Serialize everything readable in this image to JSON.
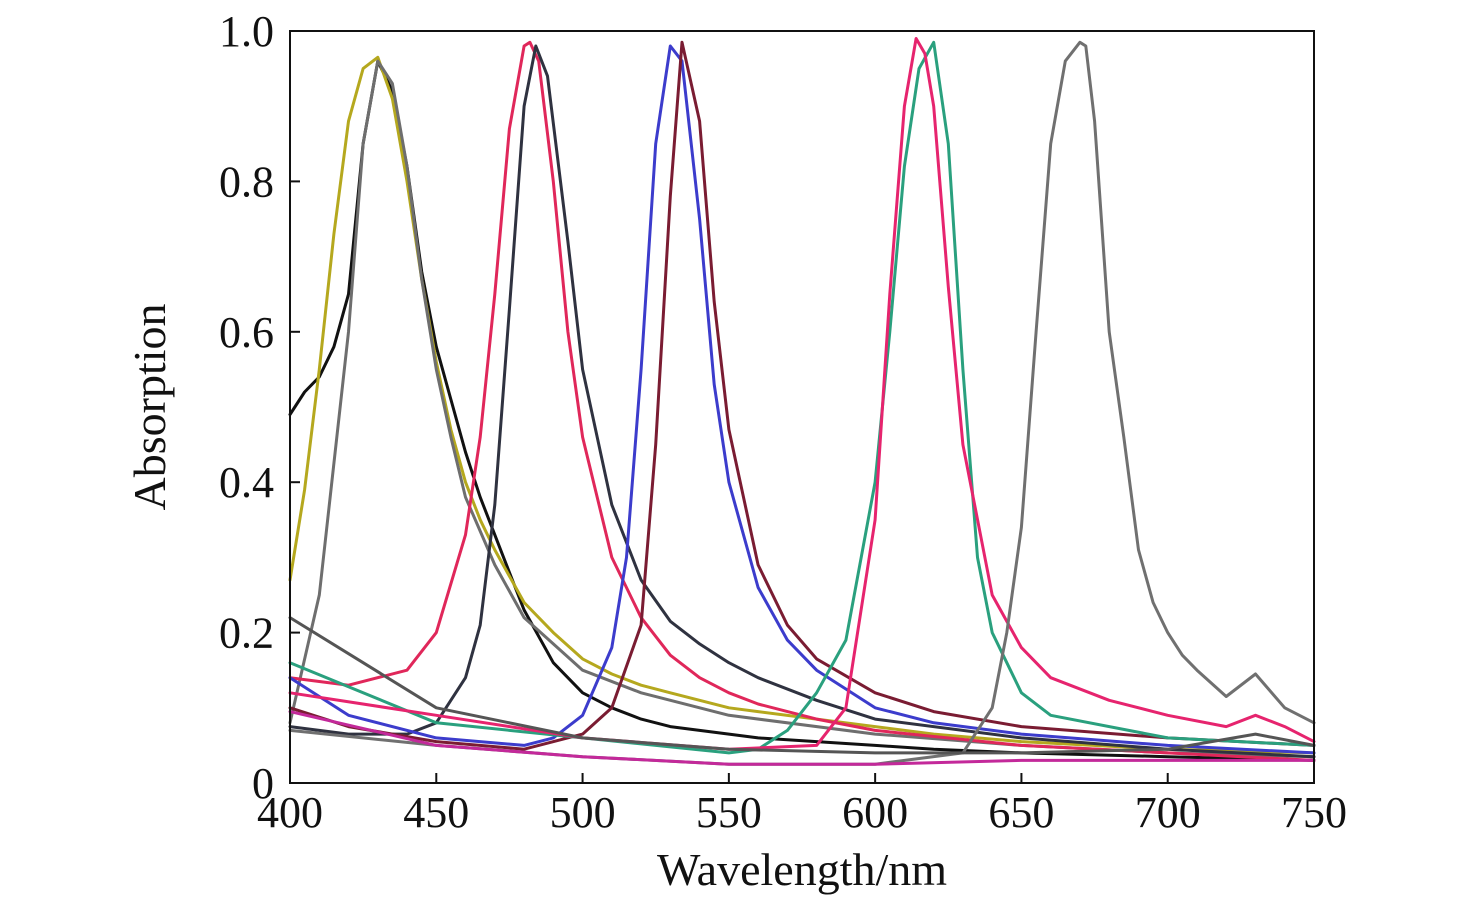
{
  "chart_data": {
    "type": "line",
    "title": "",
    "xlabel": "Wavelength/nm",
    "ylabel": "Absorption",
    "xlim": [
      400,
      750
    ],
    "ylim": [
      0,
      1.0
    ],
    "xticks": [
      400,
      450,
      500,
      550,
      600,
      650,
      700,
      750
    ],
    "xtick_labels": [
      "400",
      "450",
      "500",
      "550",
      "600",
      "650",
      "700",
      "750"
    ],
    "yticks": [
      0,
      0.2,
      0.4,
      0.6,
      0.8,
      1.0
    ],
    "ytick_labels": [
      "0",
      "0.2",
      "0.4",
      "0.6",
      "0.8",
      "1.0"
    ],
    "grid": false,
    "legend": "none",
    "series": [
      {
        "color": "#111111",
        "x": [
          400,
          405,
          410,
          415,
          420,
          425,
          430,
          435,
          440,
          445,
          450,
          455,
          460,
          465,
          470,
          475,
          480,
          490,
          500,
          510,
          520,
          530,
          540,
          550,
          560,
          580,
          600,
          620,
          650,
          700,
          750
        ],
        "y": [
          0.49,
          0.52,
          0.54,
          0.58,
          0.65,
          0.85,
          0.96,
          0.92,
          0.82,
          0.68,
          0.58,
          0.51,
          0.44,
          0.38,
          0.33,
          0.28,
          0.23,
          0.16,
          0.12,
          0.1,
          0.085,
          0.075,
          0.07,
          0.065,
          0.06,
          0.055,
          0.05,
          0.045,
          0.04,
          0.035,
          0.03
        ]
      },
      {
        "color": "#b5a81e",
        "x": [
          400,
          405,
          410,
          415,
          420,
          425,
          430,
          435,
          440,
          445,
          450,
          455,
          460,
          465,
          470,
          480,
          490,
          500,
          510,
          520,
          530,
          540,
          550,
          560,
          580,
          600,
          620,
          650,
          700,
          750
        ],
        "y": [
          0.27,
          0.39,
          0.55,
          0.73,
          0.88,
          0.95,
          0.965,
          0.91,
          0.8,
          0.67,
          0.56,
          0.47,
          0.4,
          0.35,
          0.31,
          0.24,
          0.2,
          0.165,
          0.145,
          0.13,
          0.12,
          0.11,
          0.1,
          0.095,
          0.085,
          0.075,
          0.065,
          0.055,
          0.045,
          0.04
        ]
      },
      {
        "color": "#6e6e6e",
        "x": [
          400,
          410,
          420,
          425,
          430,
          435,
          440,
          445,
          450,
          455,
          460,
          470,
          480,
          500,
          520,
          550,
          600,
          650,
          700,
          750
        ],
        "y": [
          0.08,
          0.25,
          0.6,
          0.85,
          0.96,
          0.93,
          0.82,
          0.67,
          0.55,
          0.46,
          0.38,
          0.29,
          0.22,
          0.15,
          0.12,
          0.09,
          0.065,
          0.05,
          0.04,
          0.035
        ]
      },
      {
        "color": "#e0275a",
        "x": [
          400,
          420,
          440,
          450,
          460,
          465,
          470,
          475,
          480,
          482,
          485,
          490,
          495,
          500,
          510,
          520,
          530,
          540,
          550,
          560,
          580,
          600,
          650,
          700,
          750
        ],
        "y": [
          0.14,
          0.13,
          0.15,
          0.2,
          0.33,
          0.46,
          0.65,
          0.87,
          0.98,
          0.985,
          0.96,
          0.8,
          0.6,
          0.46,
          0.3,
          0.22,
          0.17,
          0.14,
          0.12,
          0.105,
          0.085,
          0.07,
          0.05,
          0.04,
          0.03
        ]
      },
      {
        "color": "#2f3240",
        "x": [
          400,
          420,
          440,
          450,
          460,
          465,
          470,
          475,
          480,
          484,
          488,
          495,
          500,
          510,
          520,
          530,
          540,
          550,
          560,
          580,
          600,
          650,
          700,
          750
        ],
        "y": [
          0.075,
          0.065,
          0.065,
          0.08,
          0.14,
          0.21,
          0.37,
          0.63,
          0.9,
          0.98,
          0.94,
          0.72,
          0.55,
          0.37,
          0.27,
          0.215,
          0.185,
          0.16,
          0.14,
          0.11,
          0.085,
          0.06,
          0.045,
          0.035
        ]
      },
      {
        "color": "#3c3ccc",
        "x": [
          400,
          420,
          450,
          480,
          490,
          500,
          510,
          515,
          520,
          525,
          530,
          534,
          540,
          545,
          550,
          560,
          570,
          580,
          600,
          620,
          650,
          700,
          750
        ],
        "y": [
          0.14,
          0.09,
          0.06,
          0.05,
          0.06,
          0.09,
          0.18,
          0.3,
          0.55,
          0.85,
          0.98,
          0.96,
          0.75,
          0.53,
          0.4,
          0.26,
          0.19,
          0.15,
          0.1,
          0.08,
          0.065,
          0.05,
          0.04
        ]
      },
      {
        "color": "#7a1c32",
        "x": [
          400,
          420,
          450,
          480,
          500,
          510,
          520,
          525,
          530,
          534,
          540,
          545,
          550,
          560,
          570,
          580,
          600,
          620,
          650,
          700,
          750
        ],
        "y": [
          0.1,
          0.075,
          0.055,
          0.045,
          0.065,
          0.1,
          0.21,
          0.45,
          0.78,
          0.985,
          0.88,
          0.64,
          0.47,
          0.29,
          0.21,
          0.165,
          0.12,
          0.095,
          0.075,
          0.06,
          0.05
        ]
      },
      {
        "color": "#2aa07e",
        "x": [
          400,
          450,
          500,
          550,
          560,
          570,
          580,
          590,
          600,
          605,
          610,
          615,
          620,
          625,
          630,
          635,
          640,
          645,
          650,
          660,
          700,
          750
        ],
        "y": [
          0.16,
          0.08,
          0.06,
          0.04,
          0.045,
          0.07,
          0.12,
          0.19,
          0.4,
          0.6,
          0.82,
          0.95,
          0.985,
          0.85,
          0.55,
          0.3,
          0.2,
          0.16,
          0.12,
          0.09,
          0.06,
          0.05
        ]
      },
      {
        "color": "#e6246e",
        "x": [
          400,
          450,
          500,
          550,
          580,
          590,
          600,
          605,
          610,
          614,
          617,
          620,
          625,
          630,
          640,
          650,
          660,
          680,
          700,
          720,
          730,
          740,
          750
        ],
        "y": [
          0.12,
          0.09,
          0.06,
          0.045,
          0.05,
          0.1,
          0.35,
          0.65,
          0.9,
          0.99,
          0.97,
          0.9,
          0.66,
          0.45,
          0.25,
          0.18,
          0.14,
          0.11,
          0.09,
          0.075,
          0.09,
          0.075,
          0.055
        ]
      },
      {
        "color": "#707070",
        "x": [
          400,
          450,
          500,
          550,
          600,
          630,
          640,
          645,
          650,
          655,
          660,
          665,
          670,
          672,
          675,
          680,
          685,
          690,
          695,
          700,
          705,
          710,
          720,
          730,
          740,
          750
        ],
        "y": [
          0.07,
          0.05,
          0.035,
          0.025,
          0.025,
          0.04,
          0.1,
          0.2,
          0.34,
          0.6,
          0.85,
          0.96,
          0.985,
          0.98,
          0.88,
          0.6,
          0.46,
          0.31,
          0.24,
          0.2,
          0.17,
          0.15,
          0.115,
          0.145,
          0.1,
          0.08
        ]
      },
      {
        "color": "#c3299a",
        "x": [
          400,
          450,
          500,
          550,
          600,
          650,
          700,
          750
        ],
        "y": [
          0.095,
          0.05,
          0.035,
          0.025,
          0.025,
          0.03,
          0.03,
          0.03
        ]
      },
      {
        "color": "#555555",
        "x": [
          400,
          450,
          500,
          550,
          600,
          650,
          700,
          730,
          750
        ],
        "y": [
          0.22,
          0.1,
          0.06,
          0.045,
          0.04,
          0.04,
          0.045,
          0.065,
          0.05
        ]
      }
    ]
  }
}
